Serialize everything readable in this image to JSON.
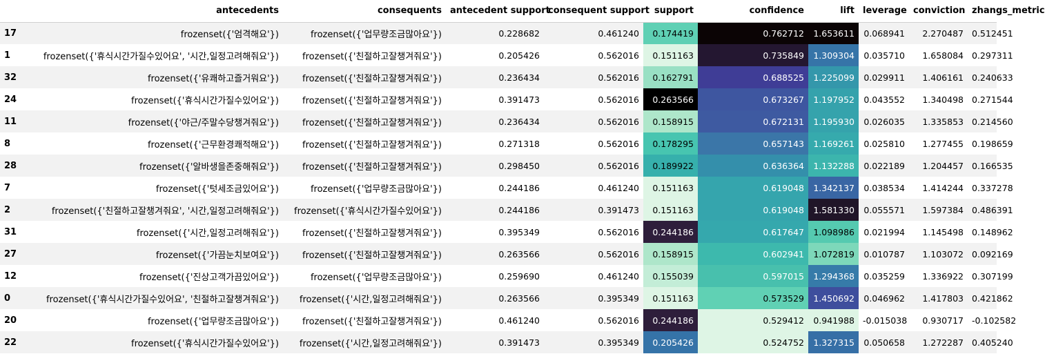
{
  "columns": [
    "antecedents",
    "consequents",
    "antecedent support",
    "consequent support",
    "support",
    "confidence",
    "lift",
    "leverage",
    "conviction",
    "zhangs_metric"
  ],
  "rows": [
    {
      "index": "17",
      "cells": [
        "frozenset({'엄격해요'})",
        "frozenset({'업무량조금많아요'})",
        "0.228682",
        "0.461240",
        "0.174419",
        "0.762712",
        "1.653611",
        "0.068941",
        "2.270487",
        "0.512451"
      ]
    },
    {
      "index": "1",
      "cells": [
        "frozenset({'휴식시간가질수있어요', '시간,일정고려해줘요'})",
        "frozenset({'친절하고잘챙겨줘요'})",
        "0.205426",
        "0.562016",
        "0.151163",
        "0.735849",
        "1.309304",
        "0.035710",
        "1.658084",
        "0.297311"
      ]
    },
    {
      "index": "32",
      "cells": [
        "frozenset({'유쾌하고즐거워요'})",
        "frozenset({'친절하고잘챙겨줘요'})",
        "0.236434",
        "0.562016",
        "0.162791",
        "0.688525",
        "1.225099",
        "0.029911",
        "1.406161",
        "0.240633"
      ]
    },
    {
      "index": "24",
      "cells": [
        "frozenset({'휴식시간가질수있어요'})",
        "frozenset({'친절하고잘챙겨줘요'})",
        "0.391473",
        "0.562016",
        "0.263566",
        "0.673267",
        "1.197952",
        "0.043552",
        "1.340498",
        "0.271544"
      ]
    },
    {
      "index": "11",
      "cells": [
        "frozenset({'야근/주말수당챙겨줘요'})",
        "frozenset({'친절하고잘챙겨줘요'})",
        "0.236434",
        "0.562016",
        "0.158915",
        "0.672131",
        "1.195930",
        "0.026035",
        "1.335853",
        "0.214560"
      ]
    },
    {
      "index": "8",
      "cells": [
        "frozenset({'근무환경쾌적해요'})",
        "frozenset({'친절하고잘챙겨줘요'})",
        "0.271318",
        "0.562016",
        "0.178295",
        "0.657143",
        "1.169261",
        "0.025810",
        "1.277455",
        "0.198659"
      ]
    },
    {
      "index": "28",
      "cells": [
        "frozenset({'알바생을존중해줘요'})",
        "frozenset({'친절하고잘챙겨줘요'})",
        "0.298450",
        "0.562016",
        "0.189922",
        "0.636364",
        "1.132288",
        "0.022189",
        "1.204457",
        "0.166535"
      ]
    },
    {
      "index": "7",
      "cells": [
        "frozenset({'텃세조금있어요'})",
        "frozenset({'업무량조금많아요'})",
        "0.244186",
        "0.461240",
        "0.151163",
        "0.619048",
        "1.342137",
        "0.038534",
        "1.414244",
        "0.337278"
      ]
    },
    {
      "index": "2",
      "cells": [
        "frozenset({'친절하고잘챙겨줘요', '시간,일정고려해줘요'})",
        "frozenset({'휴식시간가질수있어요'})",
        "0.244186",
        "0.391473",
        "0.151163",
        "0.619048",
        "1.581330",
        "0.055571",
        "1.597384",
        "0.486391"
      ]
    },
    {
      "index": "31",
      "cells": [
        "frozenset({'시간,일정고려해줘요'})",
        "frozenset({'친절하고잘챙겨줘요'})",
        "0.395349",
        "0.562016",
        "0.244186",
        "0.617647",
        "1.098986",
        "0.021994",
        "1.145498",
        "0.148962"
      ]
    },
    {
      "index": "27",
      "cells": [
        "frozenset({'가끔눈치보여요'})",
        "frozenset({'친절하고잘챙겨줘요'})",
        "0.263566",
        "0.562016",
        "0.158915",
        "0.602941",
        "1.072819",
        "0.010787",
        "1.103072",
        "0.092169"
      ]
    },
    {
      "index": "12",
      "cells": [
        "frozenset({'진상고객가끔있어요'})",
        "frozenset({'업무량조금많아요'})",
        "0.259690",
        "0.461240",
        "0.155039",
        "0.597015",
        "1.294368",
        "0.035259",
        "1.336922",
        "0.307199"
      ]
    },
    {
      "index": "0",
      "cells": [
        "frozenset({'휴식시간가질수있어요', '친절하고잘챙겨줘요'})",
        "frozenset({'시간,일정고려해줘요'})",
        "0.263566",
        "0.395349",
        "0.151163",
        "0.573529",
        "1.450692",
        "0.046962",
        "1.417803",
        "0.421862"
      ]
    },
    {
      "index": "20",
      "cells": [
        "frozenset({'업무량조금많아요'})",
        "frozenset({'친절하고잘챙겨줘요'})",
        "0.461240",
        "0.562016",
        "0.244186",
        "0.529412",
        "0.941988",
        "-0.015038",
        "0.930717",
        "-0.102582"
      ]
    },
    {
      "index": "22",
      "cells": [
        "frozenset({'휴식시간가질수있어요'})",
        "frozenset({'시간,일정고려해줘요'})",
        "0.391473",
        "0.395349",
        "0.205426",
        "0.524752",
        "1.327315",
        "0.050658",
        "1.272287",
        "0.405240"
      ]
    }
  ],
  "cell_colors": {
    "support": [
      {
        "bg": "#5fd0b4",
        "fg": "#000000"
      },
      {
        "bg": "#def5e5",
        "fg": "#000000"
      },
      {
        "bg": "#99e0c4",
        "fg": "#000000"
      },
      {
        "bg": "#000000",
        "fg": "#ffffff"
      },
      {
        "bg": "#aee6ca",
        "fg": "#000000"
      },
      {
        "bg": "#47c5b0",
        "fg": "#000000"
      },
      {
        "bg": "#36b0ac",
        "fg": "#000000"
      },
      {
        "bg": "#def5e5",
        "fg": "#000000"
      },
      {
        "bg": "#def5e5",
        "fg": "#000000"
      },
      {
        "bg": "#2e1e3b",
        "fg": "#ffffff"
      },
      {
        "bg": "#aee6ca",
        "fg": "#000000"
      },
      {
        "bg": "#c3edd7",
        "fg": "#000000"
      },
      {
        "bg": "#def5e5",
        "fg": "#000000"
      },
      {
        "bg": "#2e1e3b",
        "fg": "#ffffff"
      },
      {
        "bg": "#3573a8",
        "fg": "#ffffff"
      }
    ],
    "confidence": [
      {
        "bg": "#0b0405",
        "fg": "#ffffff"
      },
      {
        "bg": "#241731",
        "fg": "#ffffff"
      },
      {
        "bg": "#3f3d96",
        "fg": "#ffffff"
      },
      {
        "bg": "#3e56a0",
        "fg": "#ffffff"
      },
      {
        "bg": "#3e5aa1",
        "fg": "#ffffff"
      },
      {
        "bg": "#3b76a8",
        "fg": "#ffffff"
      },
      {
        "bg": "#348fab",
        "fg": "#ffffff"
      },
      {
        "bg": "#35a5ad",
        "fg": "#ffffff"
      },
      {
        "bg": "#35a5ad",
        "fg": "#ffffff"
      },
      {
        "bg": "#35a8ad",
        "fg": "#ffffff"
      },
      {
        "bg": "#3db9ad",
        "fg": "#ffffff"
      },
      {
        "bg": "#48c0ad",
        "fg": "#ffffff"
      },
      {
        "bg": "#60d1b4",
        "fg": "#000000"
      },
      {
        "bg": "#def5e5",
        "fg": "#000000"
      },
      {
        "bg": "#def5e5",
        "fg": "#000000"
      }
    ],
    "lift": [
      {
        "bg": "#0b0405",
        "fg": "#ffffff"
      },
      {
        "bg": "#3674a8",
        "fg": "#ffffff"
      },
      {
        "bg": "#3497ab",
        "fg": "#ffffff"
      },
      {
        "bg": "#35a2ac",
        "fg": "#ffffff"
      },
      {
        "bg": "#35a3ac",
        "fg": "#ffffff"
      },
      {
        "bg": "#36aaad",
        "fg": "#ffffff"
      },
      {
        "bg": "#3cb5ad",
        "fg": "#ffffff"
      },
      {
        "bg": "#3966a4",
        "fg": "#ffffff"
      },
      {
        "bg": "#201528",
        "fg": "#ffffff"
      },
      {
        "bg": "#55cab0",
        "fg": "#000000"
      },
      {
        "bg": "#7dd8ba",
        "fg": "#000000"
      },
      {
        "bg": "#367ba9",
        "fg": "#ffffff"
      },
      {
        "bg": "#3e4e9d",
        "fg": "#ffffff"
      },
      {
        "bg": "#def5e5",
        "fg": "#000000"
      },
      {
        "bg": "#366fa6",
        "fg": "#ffffff"
      }
    ]
  }
}
